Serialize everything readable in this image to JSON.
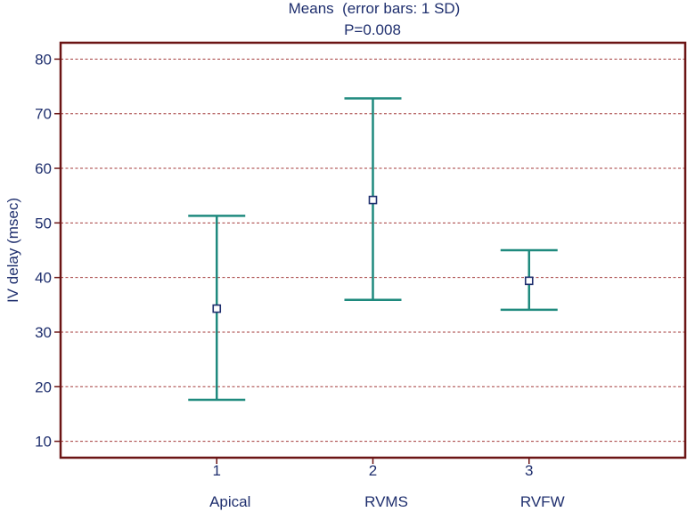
{
  "chart_data": {
    "type": "scatter",
    "title": "Means  (error bars: 1 SD)",
    "subtitle": "P=0.008",
    "xlabel": "",
    "ylabel": "IV delay (msec)",
    "ylim": [
      7,
      83
    ],
    "yticks": [
      10,
      20,
      30,
      40,
      50,
      60,
      70,
      80
    ],
    "xlim": [
      0,
      4
    ],
    "grid": true,
    "groups": [
      {
        "x": 1,
        "tick": "1",
        "name": "Apical",
        "mean": 34.3,
        "sd_low": 17.6,
        "sd_high": 51.3
      },
      {
        "x": 2,
        "tick": "2",
        "name": "RVMS",
        "mean": 54.2,
        "sd_low": 35.9,
        "sd_high": 72.8
      },
      {
        "x": 3,
        "tick": "3",
        "name": "RVFW",
        "mean": 39.4,
        "sd_low": 34.1,
        "sd_high": 45.0
      }
    ],
    "colors": {
      "frame": "#6b1414",
      "grid": "#a33a3a",
      "errorbar": "#1f8a7e",
      "marker": "#1f2f6e",
      "text": "#1f2f6e"
    }
  }
}
